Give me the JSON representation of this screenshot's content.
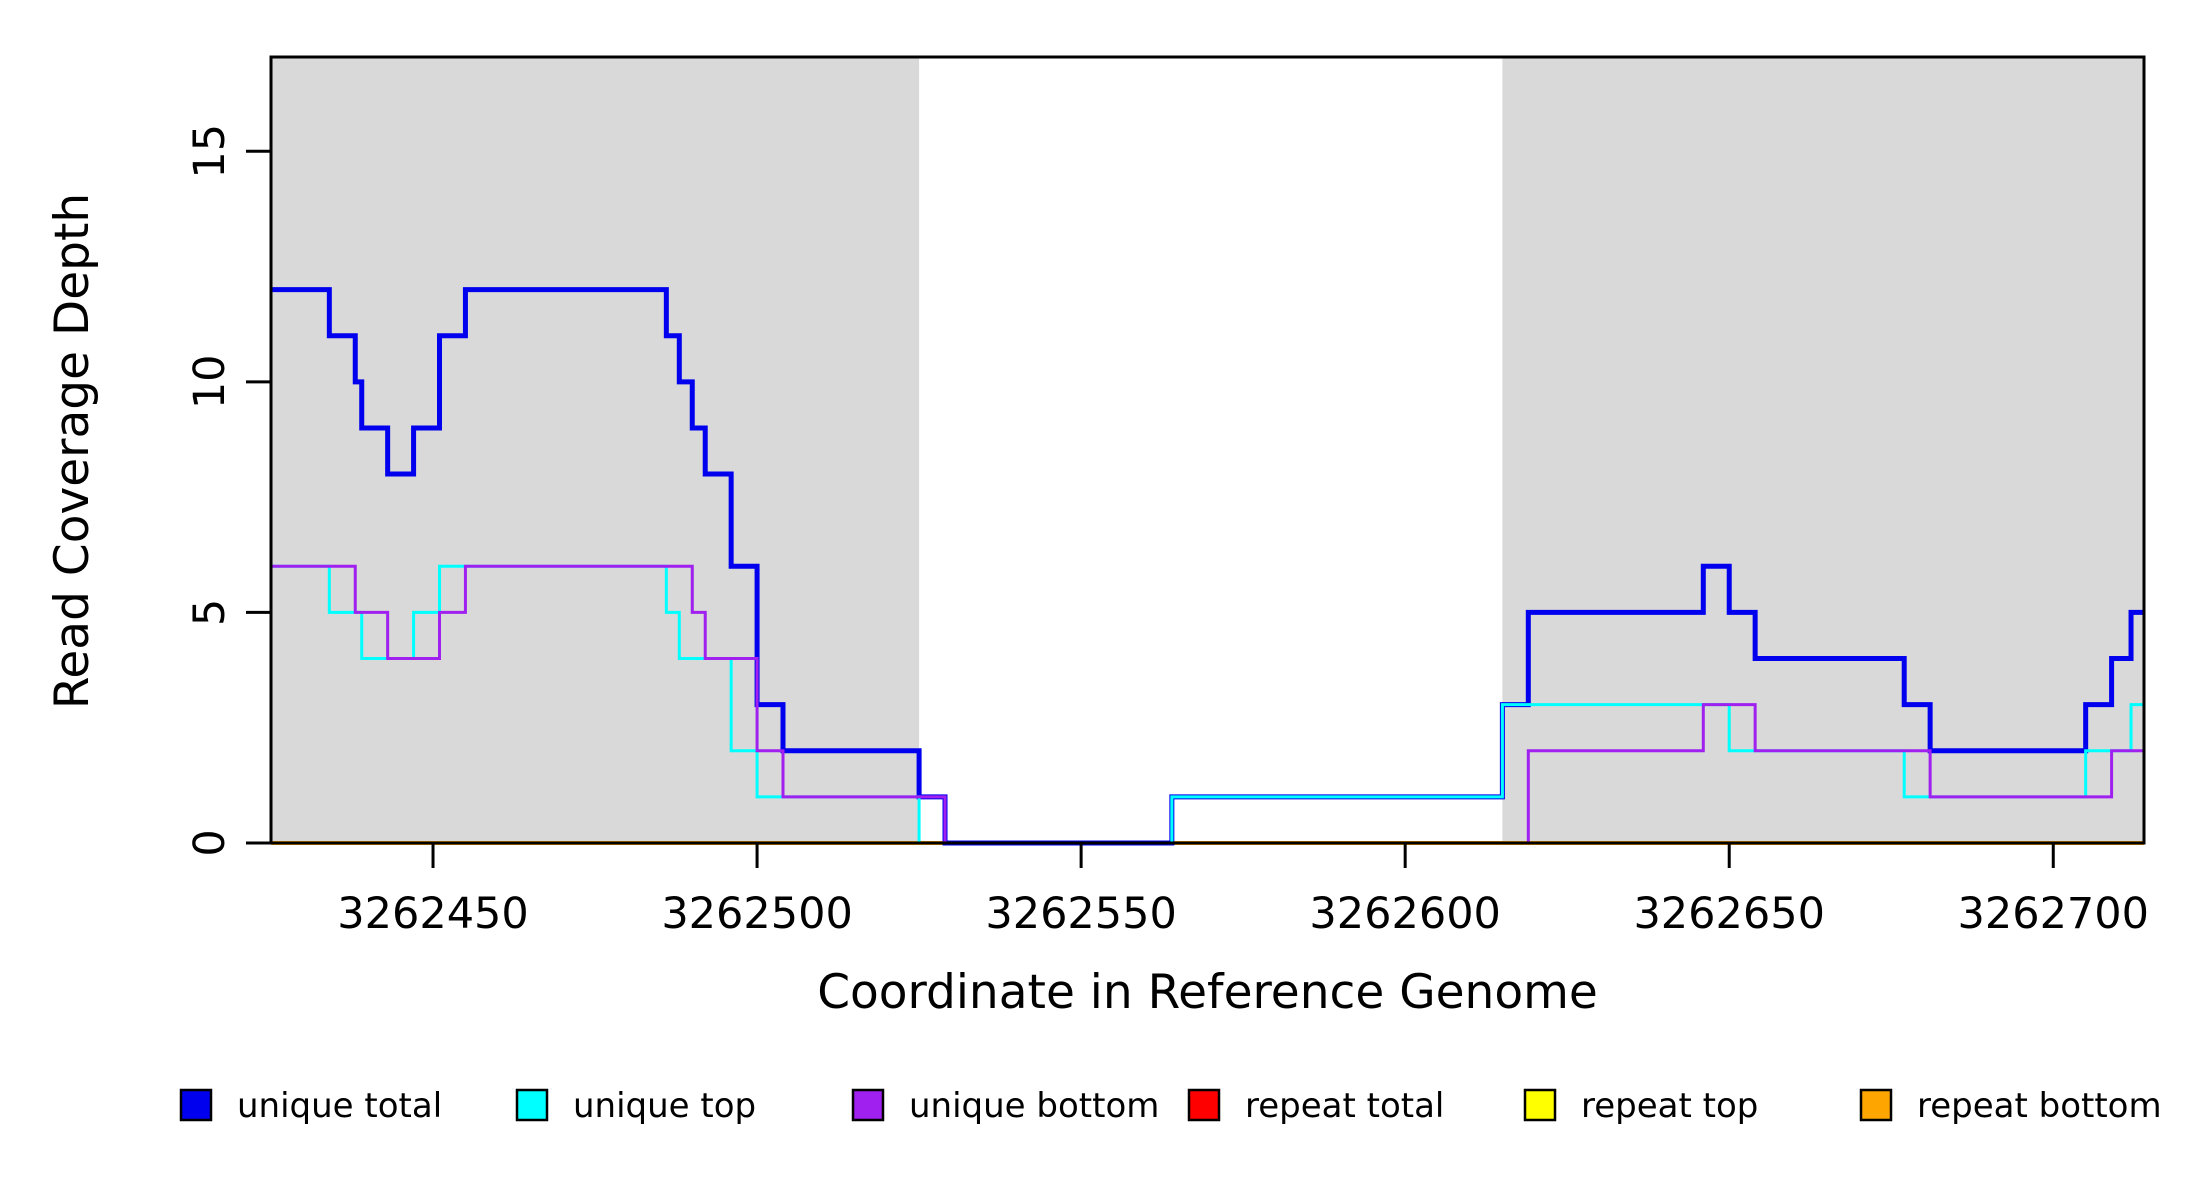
{
  "figure": {
    "background": "#FFFFFF",
    "plot_background": "#FFFFFF"
  },
  "chart_data": {
    "type": "line",
    "subtype": "step-after",
    "title": "",
    "xlabel": "Coordinate in Reference Genome",
    "ylabel": "Read Coverage Depth",
    "xlim": [
      3262425,
      3262714
    ],
    "ylim": [
      0,
      17
    ],
    "x_ticks": [
      3262450,
      3262500,
      3262550,
      3262600,
      3262650,
      3262700
    ],
    "x_tick_labels": [
      "3262450",
      "3262500",
      "3262550",
      "3262600",
      "3262650",
      "3262700"
    ],
    "y_ticks": [
      0,
      5,
      10,
      15
    ],
    "y_tick_labels": [
      "0",
      "5",
      "10",
      "15"
    ],
    "grid": false,
    "box_color": "#000000",
    "shaded_regions": [
      {
        "name": "shaded-region-left",
        "x0": 3262425,
        "x1": 3262525,
        "color": "#D9D9D9"
      },
      {
        "name": "shaded-region-right",
        "x0": 3262615,
        "x1": 3262714,
        "color": "#D9D9D9"
      }
    ],
    "series": [
      {
        "name": "repeat total",
        "color": "#FF0000",
        "line_width": 3,
        "breakpoints": [
          [
            3262425,
            0
          ]
        ]
      },
      {
        "name": "repeat top",
        "color": "#FFFF00",
        "line_width": 3,
        "breakpoints": [
          [
            3262425,
            0
          ]
        ]
      },
      {
        "name": "repeat bottom",
        "color": "#FFA500",
        "line_width": 4,
        "breakpoints": [
          [
            3262425,
            0
          ]
        ]
      },
      {
        "name": "unique total",
        "color": "#0000EE",
        "line_width": 5,
        "breakpoints": [
          [
            3262425,
            12
          ],
          [
            3262434,
            11
          ],
          [
            3262438,
            10
          ],
          [
            3262439,
            9
          ],
          [
            3262443,
            8
          ],
          [
            3262447,
            9
          ],
          [
            3262451,
            11
          ],
          [
            3262455,
            12
          ],
          [
            3262486,
            11
          ],
          [
            3262488,
            10
          ],
          [
            3262490,
            9
          ],
          [
            3262492,
            8
          ],
          [
            3262496,
            6
          ],
          [
            3262500,
            3
          ],
          [
            3262504,
            2
          ],
          [
            3262525,
            1
          ],
          [
            3262529,
            0
          ],
          [
            3262564,
            1
          ],
          [
            3262615,
            3
          ],
          [
            3262619,
            5
          ],
          [
            3262646,
            6
          ],
          [
            3262650,
            5
          ],
          [
            3262654,
            4
          ],
          [
            3262677,
            3
          ],
          [
            3262681,
            2
          ],
          [
            3262705,
            3
          ],
          [
            3262709,
            4
          ],
          [
            3262712,
            5
          ]
        ]
      },
      {
        "name": "unique top",
        "color": "#00FFFF",
        "line_width": 3,
        "breakpoints": [
          [
            3262425,
            6
          ],
          [
            3262434,
            5
          ],
          [
            3262439,
            4
          ],
          [
            3262447,
            5
          ],
          [
            3262451,
            6
          ],
          [
            3262486,
            5
          ],
          [
            3262488,
            4
          ],
          [
            3262496,
            2
          ],
          [
            3262500,
            1
          ],
          [
            3262525,
            0
          ],
          [
            3262564,
            1
          ],
          [
            3262615,
            3
          ],
          [
            3262650,
            2
          ],
          [
            3262677,
            1
          ],
          [
            3262705,
            2
          ],
          [
            3262712,
            3
          ]
        ]
      },
      {
        "name": "unique bottom",
        "color": "#A020F0",
        "line_width": 3,
        "breakpoints": [
          [
            3262425,
            6
          ],
          [
            3262438,
            5
          ],
          [
            3262443,
            4
          ],
          [
            3262451,
            5
          ],
          [
            3262455,
            6
          ],
          [
            3262490,
            5
          ],
          [
            3262492,
            4
          ],
          [
            3262500,
            2
          ],
          [
            3262504,
            1
          ],
          [
            3262529,
            0
          ],
          [
            3262619,
            2
          ],
          [
            3262646,
            3
          ],
          [
            3262654,
            2
          ],
          [
            3262681,
            1
          ],
          [
            3262709,
            2
          ]
        ]
      }
    ],
    "legend_position": "bottom"
  },
  "legend": {
    "items": [
      {
        "label": "unique total",
        "color": "#0000EE"
      },
      {
        "label": "unique top",
        "color": "#00FFFF"
      },
      {
        "label": "unique bottom",
        "color": "#A020F0"
      },
      {
        "label": "repeat total",
        "color": "#FF0000"
      },
      {
        "label": "repeat top",
        "color": "#FFFF00"
      },
      {
        "label": "repeat bottom",
        "color": "#FFA500"
      }
    ]
  }
}
